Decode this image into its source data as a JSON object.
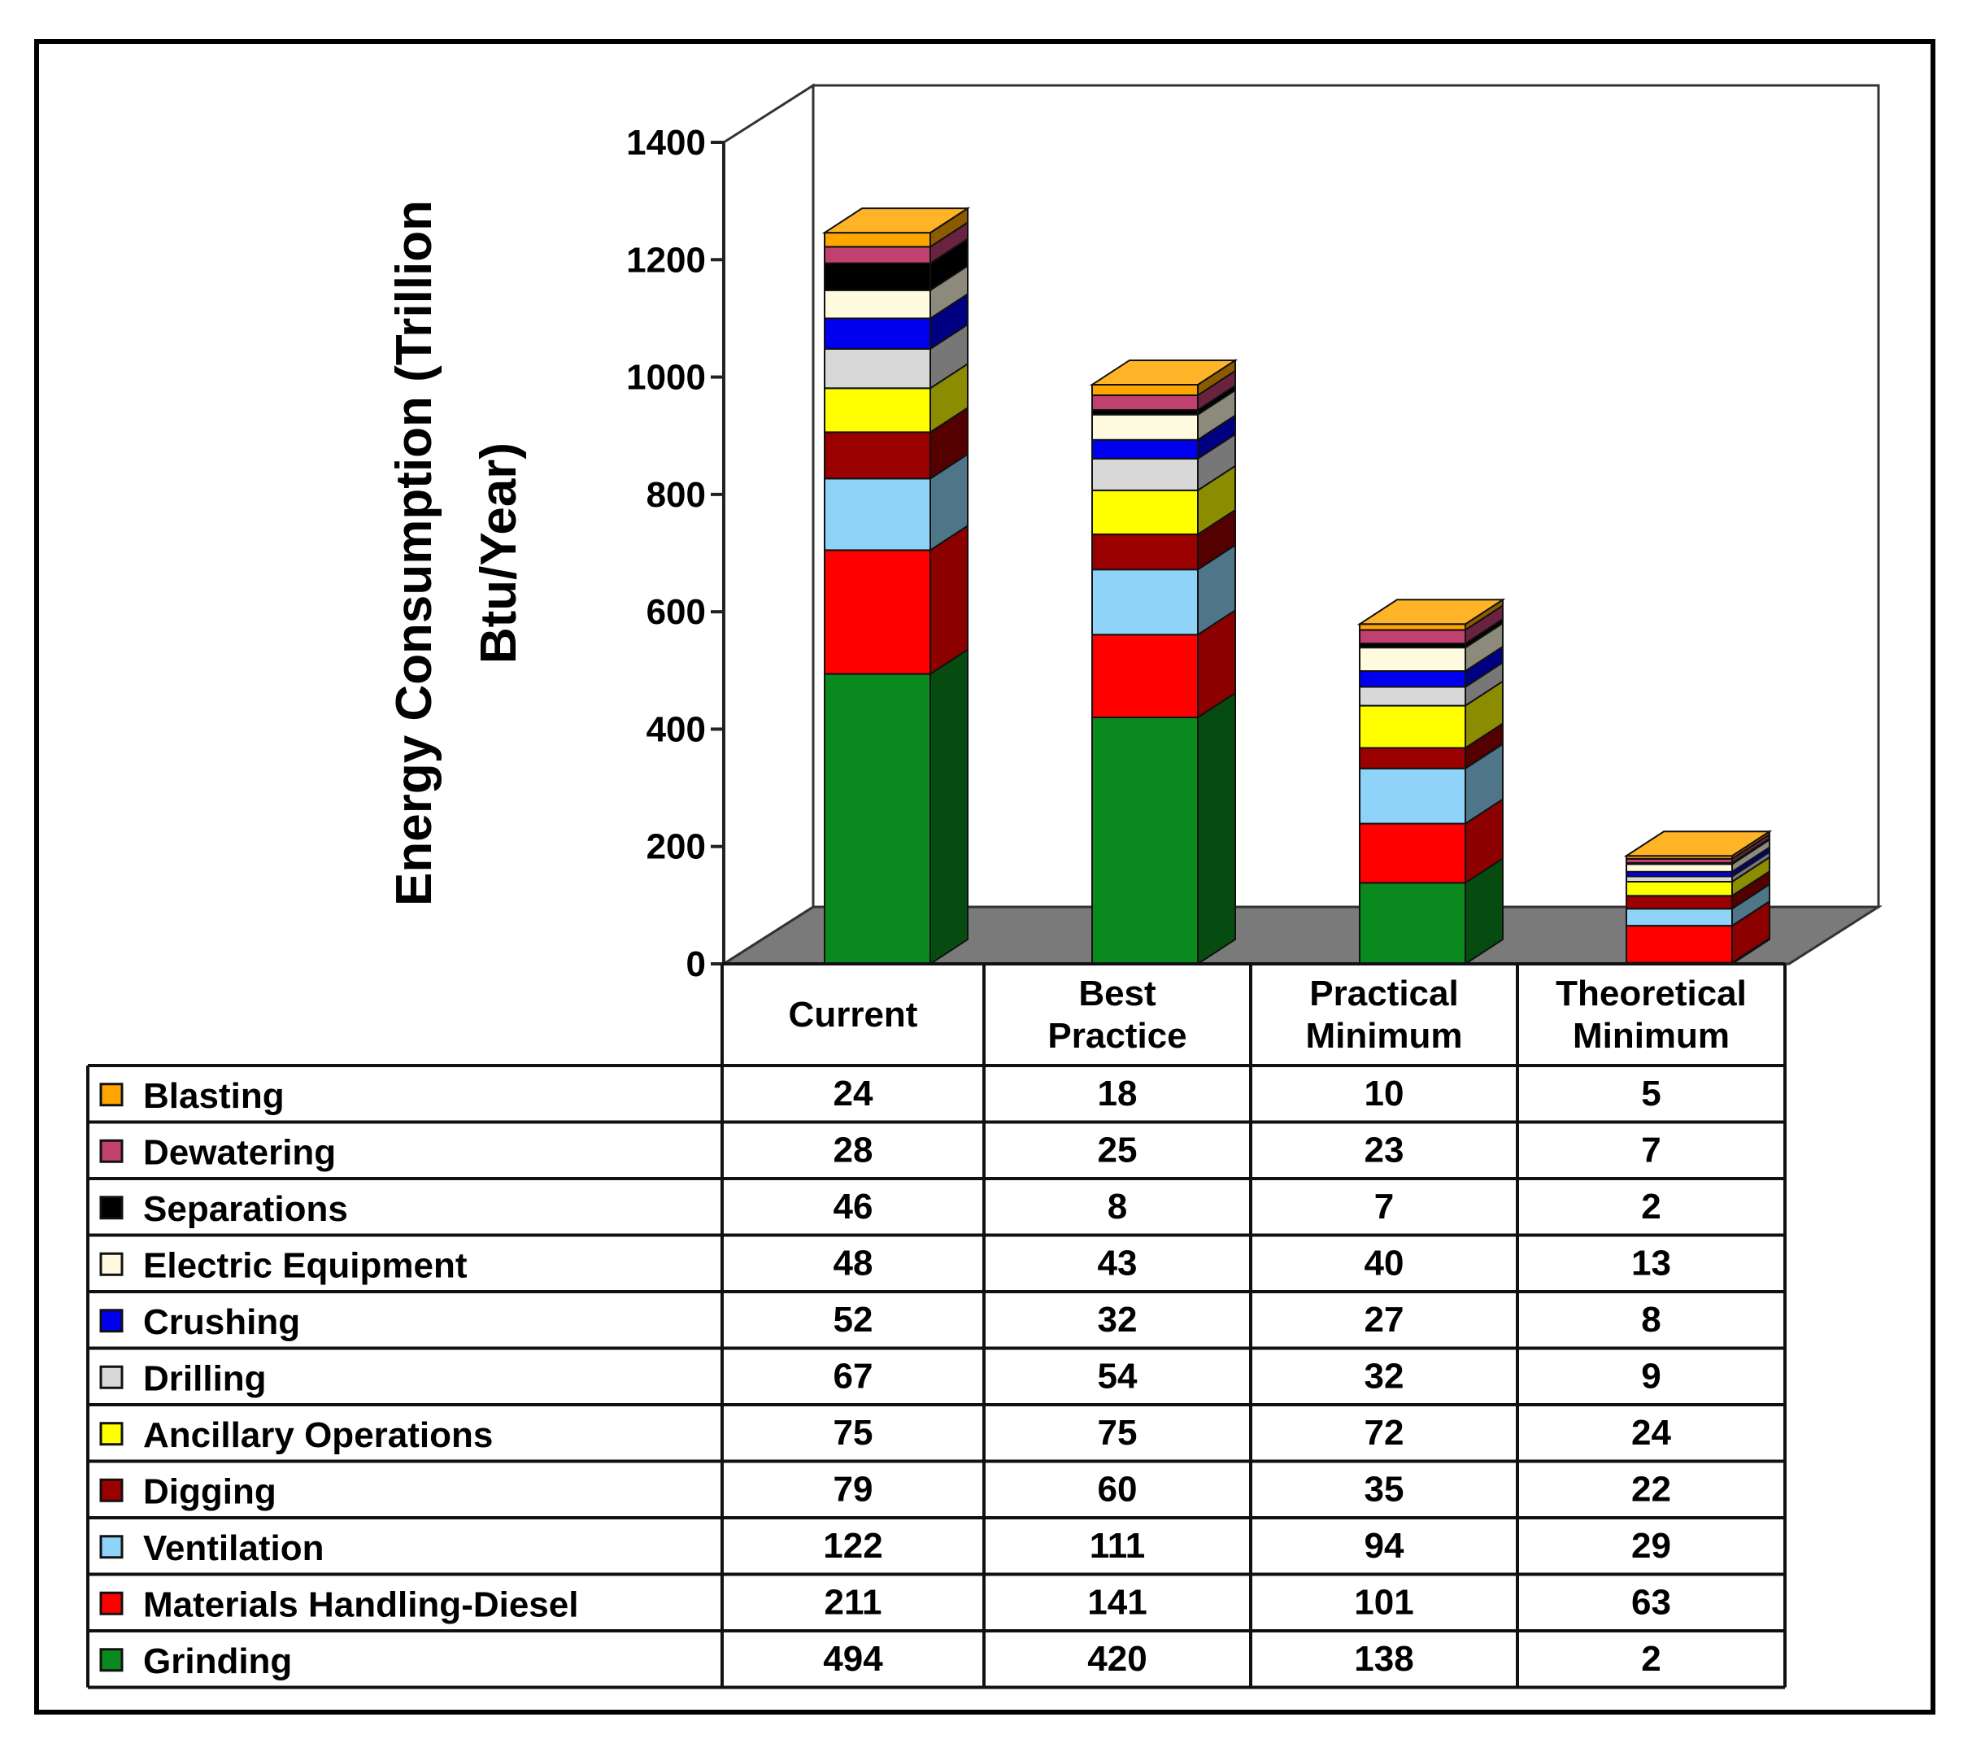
{
  "chart_data": {
    "type": "bar",
    "stacked": true,
    "three_d": true,
    "title": "",
    "xlabel": "",
    "ylabel": "Energy Consumption (Trillion Btu/Year)",
    "ylabel_lines": [
      "Energy Consumption (Trillion",
      "Btu/Year)"
    ],
    "ylim": [
      0,
      1400
    ],
    "yticks": [
      0,
      200,
      400,
      600,
      800,
      1000,
      1200,
      1400
    ],
    "categories": [
      "Current",
      "Best Practice",
      "Practical Minimum",
      "Theoretical Minimum"
    ],
    "category_lines": [
      [
        "Current"
      ],
      [
        "Best",
        "Practice"
      ],
      [
        "Practical",
        "Minimum"
      ],
      [
        "Theoretical",
        "Minimum"
      ]
    ],
    "series": [
      {
        "name": "Grinding",
        "color": "#0a8a1e",
        "values": [
          494,
          420,
          138,
          2
        ]
      },
      {
        "name": "Materials Handling-Diesel",
        "color": "#ff0000",
        "values": [
          211,
          141,
          101,
          63
        ]
      },
      {
        "name": "Ventilation",
        "color": "#8fd4f8",
        "values": [
          122,
          111,
          94,
          29
        ]
      },
      {
        "name": "Digging",
        "color": "#9b0000",
        "values": [
          79,
          60,
          35,
          22
        ]
      },
      {
        "name": "Ancillary Operations",
        "color": "#ffff00",
        "values": [
          75,
          75,
          72,
          24
        ]
      },
      {
        "name": "Drilling",
        "color": "#d8d8d8",
        "values": [
          67,
          54,
          32,
          9
        ]
      },
      {
        "name": "Crushing",
        "color": "#0000ee",
        "values": [
          52,
          32,
          27,
          8
        ]
      },
      {
        "name": "Electric Equipment",
        "color": "#fffbe0",
        "values": [
          48,
          43,
          40,
          13
        ]
      },
      {
        "name": "Separations",
        "color": "#000000",
        "values": [
          46,
          8,
          7,
          2
        ]
      },
      {
        "name": "Dewatering",
        "color": "#c04070",
        "values": [
          28,
          25,
          23,
          7
        ]
      },
      {
        "name": "Blasting",
        "color": "#ffa500",
        "values": [
          24,
          18,
          10,
          5
        ]
      }
    ],
    "table_row_order": [
      "Blasting",
      "Dewatering",
      "Separations",
      "Electric Equipment",
      "Crushing",
      "Drilling",
      "Ancillary Operations",
      "Digging",
      "Ventilation",
      "Materials Handling-Diesel",
      "Grinding"
    ],
    "legend": "data-table-below"
  }
}
